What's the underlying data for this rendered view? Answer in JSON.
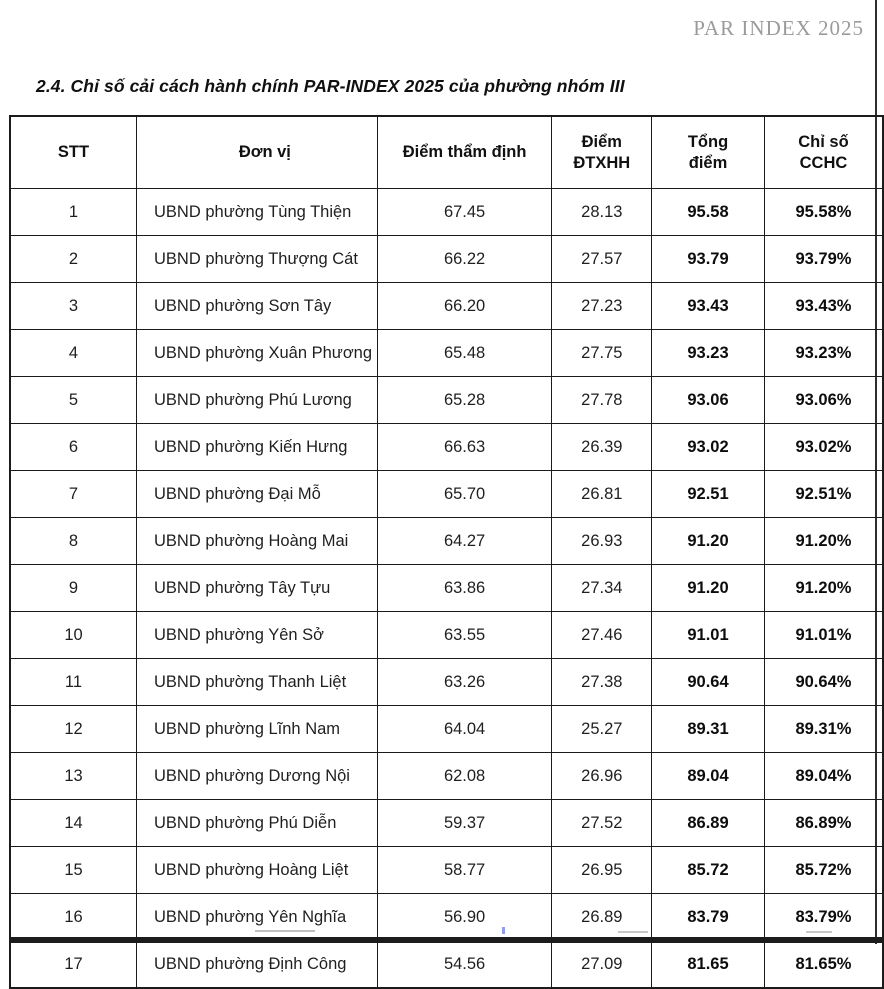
{
  "page": {
    "watermark": "PAR INDEX 2025",
    "title": "2.4. Chỉ số cải cách hành chính PAR-INDEX 2025 của phường nhóm III"
  },
  "table": {
    "headers": [
      "STT",
      "Đơn vị",
      "Điểm thẩm định",
      "Điểm\nĐTXHH",
      "Tổng\nđiểm",
      "Chỉ số\nCCHC"
    ],
    "rows": [
      [
        "1",
        "UBND phường Tùng Thiện",
        "67.45",
        "28.13",
        "95.58",
        "95.58%"
      ],
      [
        "2",
        "UBND phường Thượng Cát",
        "66.22",
        "27.57",
        "93.79",
        "93.79%"
      ],
      [
        "3",
        "UBND phường Sơn Tây",
        "66.20",
        "27.23",
        "93.43",
        "93.43%"
      ],
      [
        "4",
        "UBND phường Xuân Phương",
        "65.48",
        "27.75",
        "93.23",
        "93.23%"
      ],
      [
        "5",
        "UBND phường Phú Lương",
        "65.28",
        "27.78",
        "93.06",
        "93.06%"
      ],
      [
        "6",
        "UBND phường Kiến Hưng",
        "66.63",
        "26.39",
        "93.02",
        "93.02%"
      ],
      [
        "7",
        "UBND phường Đại Mỗ",
        "65.70",
        "26.81",
        "92.51",
        "92.51%"
      ],
      [
        "8",
        "UBND phường Hoàng Mai",
        "64.27",
        "26.93",
        "91.20",
        "91.20%"
      ],
      [
        "9",
        "UBND phường Tây Tựu",
        "63.86",
        "27.34",
        "91.20",
        "91.20%"
      ],
      [
        "10",
        "UBND phường Yên Sở",
        "63.55",
        "27.46",
        "91.01",
        "91.01%"
      ],
      [
        "11",
        "UBND phường Thanh Liệt",
        "63.26",
        "27.38",
        "90.64",
        "90.64%"
      ],
      [
        "12",
        "UBND phường Lĩnh Nam",
        "64.04",
        "25.27",
        "89.31",
        "89.31%"
      ],
      [
        "13",
        "UBND phường Dương Nội",
        "62.08",
        "26.96",
        "89.04",
        "89.04%"
      ],
      [
        "14",
        "UBND phường Phú Diễn",
        "59.37",
        "27.52",
        "86.89",
        "86.89%"
      ],
      [
        "15",
        "UBND phường Hoàng Liệt",
        "58.77",
        "26.95",
        "85.72",
        "85.72%"
      ],
      [
        "16",
        "UBND phường Yên Nghĩa",
        "56.90",
        "26.89",
        "83.79",
        "83.79%"
      ],
      [
        "17",
        "UBND phường Định Công",
        "54.56",
        "27.09",
        "81.65",
        "81.65%"
      ]
    ]
  }
}
